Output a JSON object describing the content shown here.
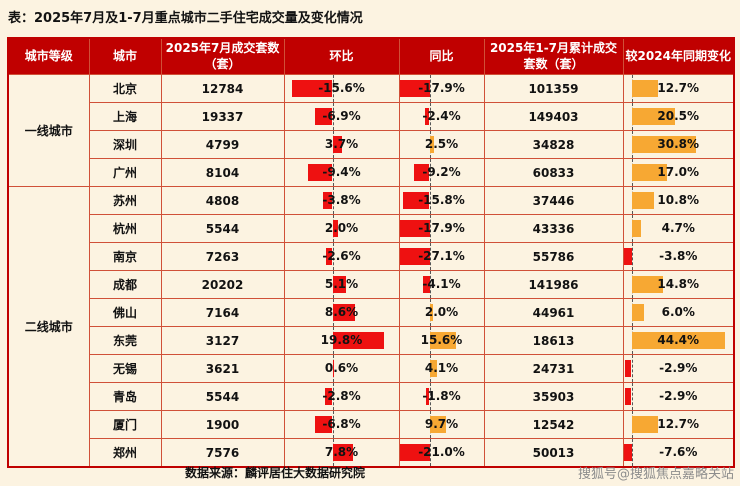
{
  "title": "表：2025年7月及1-7月重点城市二手住宅成交量及变化情况",
  "colors": {
    "red": "#ee1111",
    "orange": "#f7a833",
    "header_bg": "#c00000",
    "background": "#fcf3e1",
    "grid": "#d05038"
  },
  "table": {
    "headers": [
      "城市等级",
      "城市",
      "2025年7月成交套数（套）",
      "环比",
      "同比",
      "2025年1-7月累计成交套数（套）",
      "较2024年同期变化"
    ],
    "groups": [
      {
        "tier": "一线城市",
        "rows": [
          {
            "city": "北京",
            "jul": "12784",
            "mom": -15.6,
            "mom_label": "-15.6%",
            "yoy": -17.9,
            "yoy_label": "-17.9%",
            "cum": "101359",
            "chg": 12.7,
            "chg_label": "12.7%"
          },
          {
            "city": "上海",
            "jul": "19337",
            "mom": -6.9,
            "mom_label": "-6.9%",
            "yoy": -2.4,
            "yoy_label": "-2.4%",
            "cum": "149403",
            "chg": 20.5,
            "chg_label": "20.5%"
          },
          {
            "city": "深圳",
            "jul": "4799",
            "mom": 3.7,
            "mom_label": "3.7%",
            "yoy": 2.5,
            "yoy_label": "2.5%",
            "cum": "34828",
            "chg": 30.8,
            "chg_label": "30.8%"
          },
          {
            "city": "广州",
            "jul": "8104",
            "mom": -9.4,
            "mom_label": "-9.4%",
            "yoy": -9.2,
            "yoy_label": "-9.2%",
            "cum": "60833",
            "chg": 17.0,
            "chg_label": "17.0%"
          }
        ]
      },
      {
        "tier": "二线城市",
        "rows": [
          {
            "city": "苏州",
            "jul": "4808",
            "mom": -3.8,
            "mom_label": "-3.8%",
            "yoy": -15.8,
            "yoy_label": "-15.8%",
            "cum": "37446",
            "chg": 10.8,
            "chg_label": "10.8%"
          },
          {
            "city": "杭州",
            "jul": "5544",
            "mom": 2.0,
            "mom_label": "2.0%",
            "yoy": -17.9,
            "yoy_label": "-17.9%",
            "cum": "43336",
            "chg": 4.7,
            "chg_label": "4.7%"
          },
          {
            "city": "南京",
            "jul": "7263",
            "mom": -2.6,
            "mom_label": "-2.6%",
            "yoy": -27.1,
            "yoy_label": "-27.1%",
            "cum": "55786",
            "chg": -3.8,
            "chg_label": "-3.8%"
          },
          {
            "city": "成都",
            "jul": "20202",
            "mom": 5.1,
            "mom_label": "5.1%",
            "yoy": -4.1,
            "yoy_label": "-4.1%",
            "cum": "141986",
            "chg": 14.8,
            "chg_label": "14.8%"
          },
          {
            "city": "佛山",
            "jul": "7164",
            "mom": 8.6,
            "mom_label": "8.6%",
            "yoy": 2.0,
            "yoy_label": "2.0%",
            "cum": "44961",
            "chg": 6.0,
            "chg_label": "6.0%"
          },
          {
            "city": "东莞",
            "jul": "3127",
            "mom": 19.8,
            "mom_label": "19.8%",
            "yoy": 15.6,
            "yoy_label": "15.6%",
            "cum": "18613",
            "chg": 44.4,
            "chg_label": "44.4%"
          },
          {
            "city": "无锡",
            "jul": "3621",
            "mom": 0.6,
            "mom_label": "0.6%",
            "yoy": 4.1,
            "yoy_label": "4.1%",
            "cum": "24731",
            "chg": -2.9,
            "chg_label": "-2.9%"
          },
          {
            "city": "青岛",
            "jul": "5544",
            "mom": -2.8,
            "mom_label": "-2.8%",
            "yoy": -1.8,
            "yoy_label": "-1.8%",
            "cum": "35903",
            "chg": -2.9,
            "chg_label": "-2.9%"
          },
          {
            "city": "厦门",
            "jul": "1900",
            "mom": -6.8,
            "mom_label": "-6.8%",
            "yoy": 9.7,
            "yoy_label": "9.7%",
            "cum": "12542",
            "chg": 12.7,
            "chg_label": "12.7%"
          },
          {
            "city": "郑州",
            "jul": "7576",
            "mom": 7.8,
            "mom_label": "7.8%",
            "yoy": -21.0,
            "yoy_label": "-21.0%",
            "cum": "50013",
            "chg": -7.6,
            "chg_label": "-7.6%"
          }
        ]
      }
    ]
  },
  "footer": {
    "source": "数据来源：麟评居住大数据研究院",
    "watermark": "搜狐号@搜狐焦点嘉略关站"
  },
  "chart_data": {
    "type": "table",
    "title": "2025年7月及1-7月重点城市二手住宅成交量及变化情况",
    "columns": [
      "城市等级",
      "城市",
      "2025年7月成交套数（套）",
      "环比(%)",
      "同比(%)",
      "2025年1-7月累计成交套数（套）",
      "较2024年同期变化(%)"
    ],
    "rows": [
      [
        "一线城市",
        "北京",
        12784,
        -15.6,
        -17.9,
        101359,
        12.7
      ],
      [
        "一线城市",
        "上海",
        19337,
        -6.9,
        -2.4,
        149403,
        20.5
      ],
      [
        "一线城市",
        "深圳",
        4799,
        3.7,
        2.5,
        34828,
        30.8
      ],
      [
        "一线城市",
        "广州",
        8104,
        -9.4,
        -9.2,
        60833,
        17.0
      ],
      [
        "二线城市",
        "苏州",
        4808,
        -3.8,
        -15.8,
        37446,
        10.8
      ],
      [
        "二线城市",
        "杭州",
        5544,
        2.0,
        -17.9,
        43336,
        4.7
      ],
      [
        "二线城市",
        "南京",
        7263,
        -2.6,
        -27.1,
        55786,
        -3.8
      ],
      [
        "二线城市",
        "成都",
        20202,
        5.1,
        -4.1,
        141986,
        14.8
      ],
      [
        "二线城市",
        "佛山",
        7164,
        8.6,
        2.0,
        44961,
        6.0
      ],
      [
        "二线城市",
        "东莞",
        3127,
        19.8,
        15.6,
        18613,
        44.4
      ],
      [
        "二线城市",
        "无锡",
        3621,
        0.6,
        4.1,
        24731,
        -2.9
      ],
      [
        "二线城市",
        "青岛",
        5544,
        -2.8,
        -1.8,
        35903,
        -2.9
      ],
      [
        "二线城市",
        "厦门",
        1900,
        -6.8,
        9.7,
        12542,
        12.7
      ],
      [
        "二线城市",
        "郑州",
        7576,
        7.8,
        -21.0,
        50013,
        -7.6
      ]
    ],
    "notes": "环比 bars red for all values; 同比 and 较2024年同期变化 bars orange for positive, red for negative; dashed vertical zero-baseline in each bar column"
  }
}
